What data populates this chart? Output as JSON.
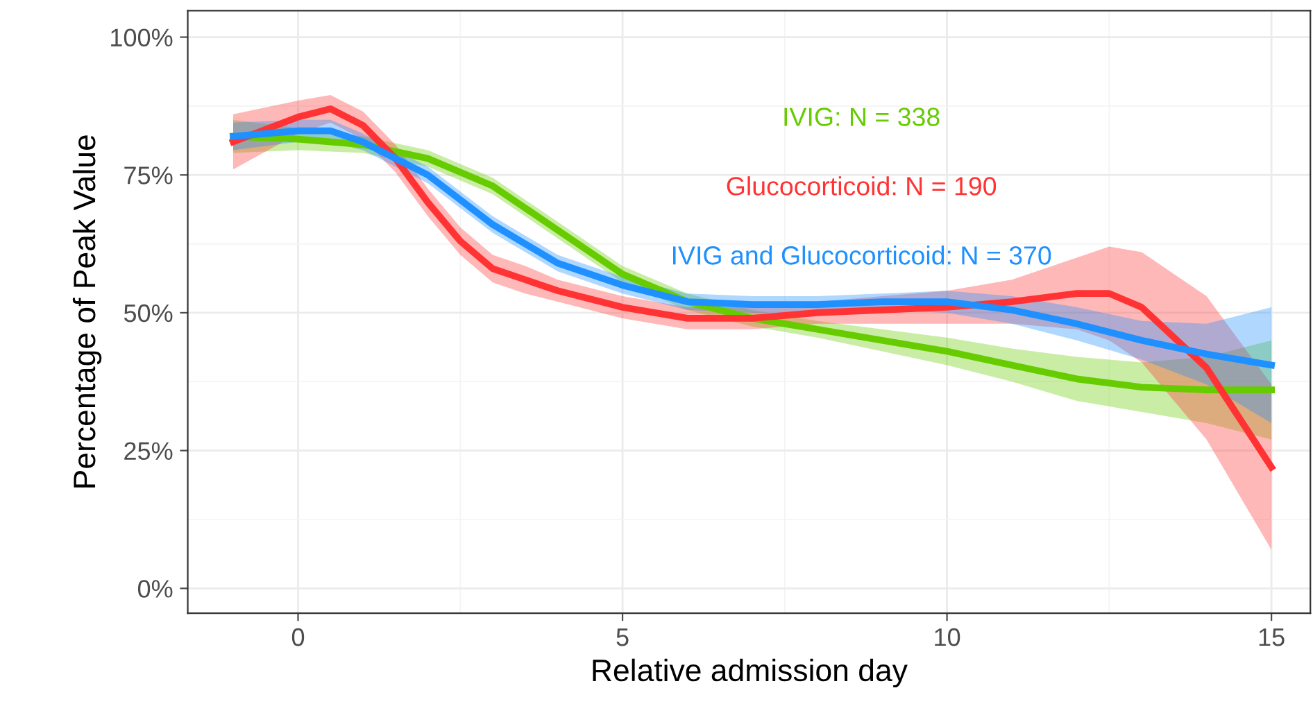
{
  "chart_data": {
    "type": "line",
    "xlabel": "Relative admission day",
    "ylabel": "Percentage of Peak Value",
    "xlim": [
      -1.7,
      15.6
    ],
    "xticks": [
      0,
      5,
      10,
      15
    ],
    "ylim": [
      -4.5,
      104.8
    ],
    "yticks": [
      {
        "value": 0,
        "label": "0%"
      },
      {
        "value": 25,
        "label": "25%"
      },
      {
        "value": 50,
        "label": "50%"
      },
      {
        "value": 75,
        "label": "75%"
      },
      {
        "value": 100,
        "label": "100%"
      }
    ],
    "grid": true,
    "legend": false,
    "marker": "none",
    "line_style": "solid",
    "series": [
      {
        "name": "IVIG: N = 338",
        "color": "#66cc00",
        "x": [
          -1,
          0,
          1,
          2,
          3,
          4,
          5,
          6,
          7,
          8,
          9,
          10,
          11,
          12,
          13,
          14,
          15
        ],
        "values": [
          82,
          81.5,
          80.5,
          78,
          73,
          65,
          57,
          52,
          49,
          47,
          45,
          43,
          40.5,
          38,
          36.5,
          36,
          36
        ],
        "lower": [
          79,
          79.5,
          79,
          76.5,
          71.5,
          63.5,
          55.5,
          50.5,
          47.5,
          45.5,
          43,
          40.5,
          37.5,
          34,
          32,
          30,
          27
        ],
        "upper": [
          85,
          83.5,
          82,
          79.5,
          74.5,
          66.5,
          58.5,
          53.5,
          50.5,
          48.5,
          47,
          45.5,
          43.5,
          42,
          41,
          42,
          45
        ]
      },
      {
        "name": "Glucocorticoid: N = 190",
        "color": "#ff3333",
        "x": [
          -1,
          0,
          0.5,
          1,
          1.5,
          2,
          2.5,
          3,
          3.5,
          4,
          5,
          6,
          7,
          8,
          9,
          10,
          11,
          12,
          12.5,
          13,
          14,
          15
        ],
        "values": [
          81,
          85.5,
          87,
          84,
          78,
          70,
          63,
          58,
          56,
          54,
          51,
          49,
          49,
          50,
          50.5,
          51,
          52,
          53.5,
          53.5,
          51,
          40,
          22
        ],
        "lower": [
          76,
          82.5,
          84.5,
          81.5,
          75.5,
          67.5,
          60.5,
          55.5,
          53.5,
          52,
          49,
          47,
          47,
          48,
          48,
          48,
          48,
          47,
          45,
          41,
          27,
          7
        ],
        "upper": [
          86,
          88.5,
          89.5,
          86.5,
          80.5,
          72.5,
          65.5,
          60.5,
          58.5,
          56,
          53,
          51,
          51,
          52,
          53,
          54,
          56,
          60,
          62,
          61,
          53,
          37
        ]
      },
      {
        "name": "IVIG and Glucocorticoid: N = 370",
        "color": "#1e90ff",
        "x": [
          -1,
          0,
          0.5,
          1,
          2,
          3,
          4,
          5,
          6,
          7,
          8,
          9,
          10,
          11,
          12,
          13,
          14,
          15
        ],
        "values": [
          82,
          83,
          83,
          81,
          75,
          66,
          59,
          55,
          52,
          51.5,
          51.5,
          52,
          52,
          50.5,
          48,
          45,
          42.5,
          40.5
        ],
        "lower": [
          79.5,
          81,
          81,
          79.5,
          73.5,
          64.5,
          57.5,
          53.5,
          50.5,
          50,
          50,
          50.5,
          50,
          48,
          45,
          41.5,
          37,
          30
        ],
        "upper": [
          84.5,
          85,
          85,
          82.5,
          76.5,
          67.5,
          60.5,
          56.5,
          53.5,
          53,
          53,
          53.5,
          54,
          53,
          51,
          48.5,
          48,
          51
        ]
      }
    ]
  }
}
